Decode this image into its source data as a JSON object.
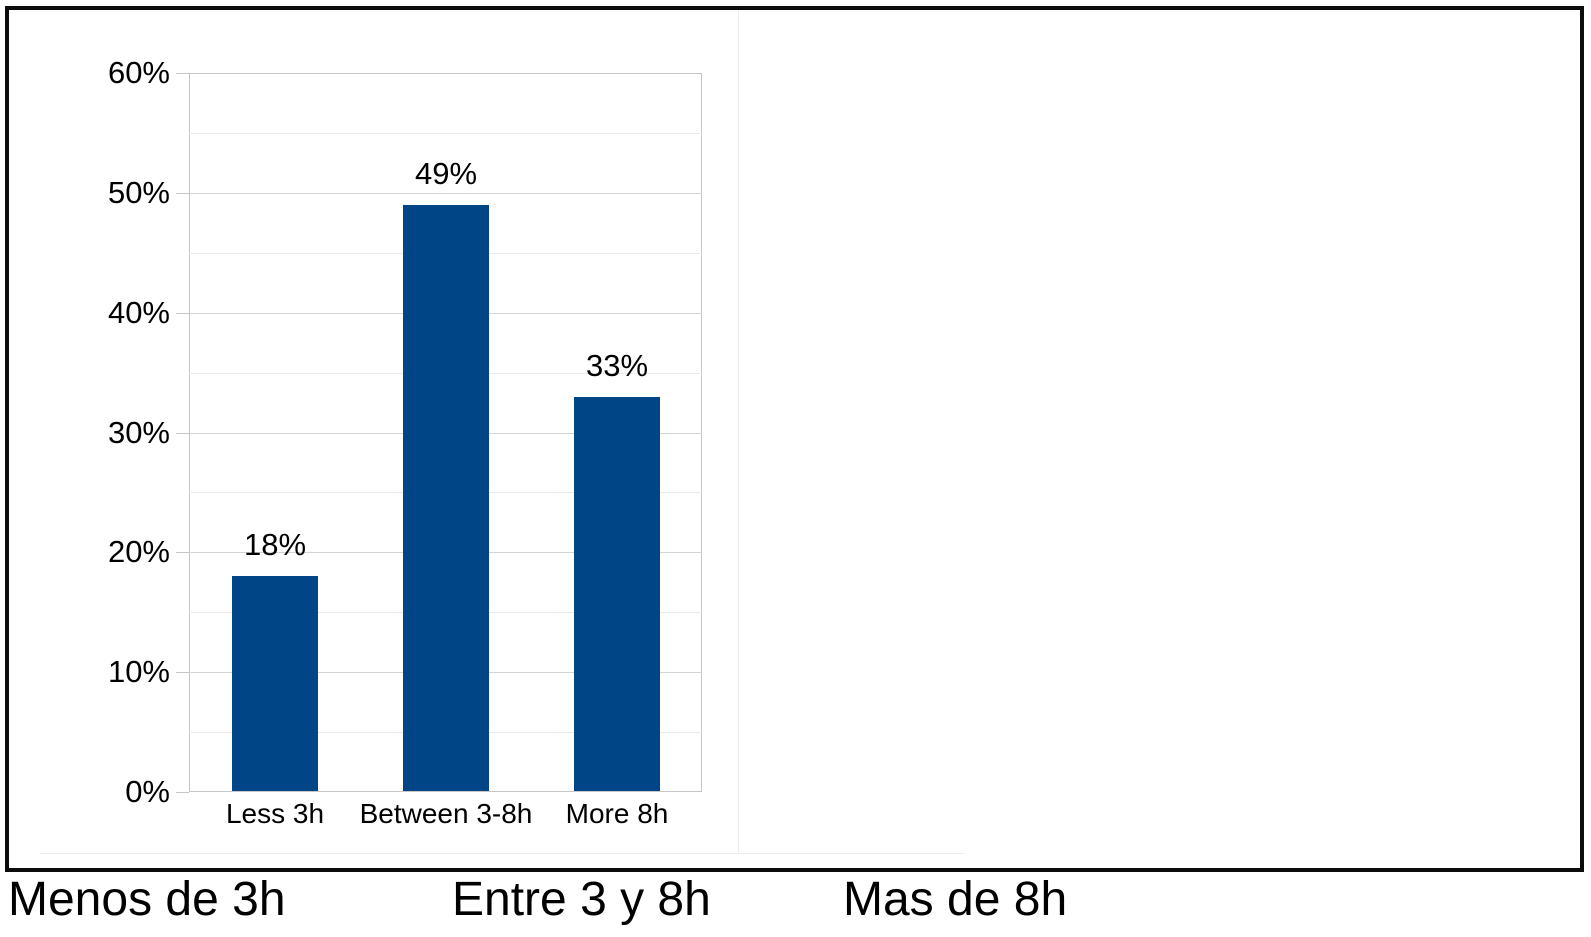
{
  "chart_data": {
    "type": "bar",
    "title": "",
    "xlabel": "",
    "ylabel": "",
    "categories": [
      "Less 3h",
      "Between 3-8h",
      "More 8h"
    ],
    "values": [
      18,
      49,
      33
    ],
    "data_labels": [
      "18%",
      "49%",
      "33%"
    ],
    "y_tick_labels": [
      "0%",
      "10%",
      "20%",
      "30%",
      "40%",
      "50%",
      "60%"
    ],
    "ylim": [
      0,
      60
    ],
    "y_major_step": 10,
    "y_minor_step": 5,
    "grid": "horizontal, major and minor",
    "legend": "none",
    "bar_color": "#004586"
  },
  "captions": [
    "Menos de 3h",
    "Entre 3 y 8h",
    "Mas de 8h"
  ]
}
